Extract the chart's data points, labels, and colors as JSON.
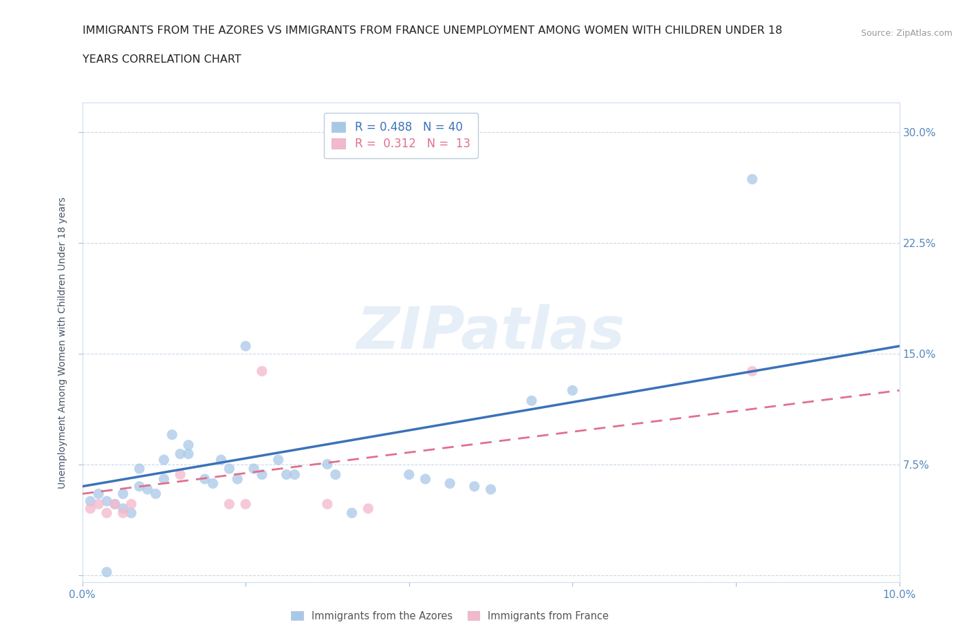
{
  "title_line1": "IMMIGRANTS FROM THE AZORES VS IMMIGRANTS FROM FRANCE UNEMPLOYMENT AMONG WOMEN WITH CHILDREN UNDER 18",
  "title_line2": "YEARS CORRELATION CHART",
  "source": "Source: ZipAtlas.com",
  "ylabel": "Unemployment Among Women with Children Under 18 years",
  "xlim": [
    0.0,
    0.1
  ],
  "ylim": [
    -0.005,
    0.32
  ],
  "xticks": [
    0.0,
    0.02,
    0.04,
    0.06,
    0.08,
    0.1
  ],
  "yticks": [
    0.0,
    0.075,
    0.15,
    0.225,
    0.3
  ],
  "xticklabels": [
    "0.0%",
    "",
    "",
    "",
    "",
    "10.0%"
  ],
  "yticklabels_right": [
    "",
    "7.5%",
    "15.0%",
    "22.5%",
    "30.0%"
  ],
  "blue_R": 0.488,
  "blue_N": 40,
  "pink_R": 0.312,
  "pink_N": 13,
  "blue_color": "#a8c8e8",
  "pink_color": "#f4b8cc",
  "blue_line_color": "#3a72b8",
  "pink_line_color": "#e0708c",
  "background_color": "#ffffff",
  "grid_color": "#c8d8e8",
  "watermark": "ZIPatlas",
  "blue_scatter_x": [
    0.001,
    0.002,
    0.003,
    0.004,
    0.005,
    0.005,
    0.006,
    0.007,
    0.007,
    0.008,
    0.009,
    0.01,
    0.01,
    0.011,
    0.012,
    0.013,
    0.013,
    0.015,
    0.016,
    0.017,
    0.018,
    0.019,
    0.02,
    0.021,
    0.022,
    0.024,
    0.025,
    0.026,
    0.03,
    0.031,
    0.033,
    0.04,
    0.042,
    0.045,
    0.048,
    0.05,
    0.055,
    0.06,
    0.082,
    0.003
  ],
  "blue_scatter_y": [
    0.05,
    0.055,
    0.05,
    0.048,
    0.045,
    0.055,
    0.042,
    0.06,
    0.072,
    0.058,
    0.055,
    0.065,
    0.078,
    0.095,
    0.082,
    0.082,
    0.088,
    0.065,
    0.062,
    0.078,
    0.072,
    0.065,
    0.155,
    0.072,
    0.068,
    0.078,
    0.068,
    0.068,
    0.075,
    0.068,
    0.042,
    0.068,
    0.065,
    0.062,
    0.06,
    0.058,
    0.118,
    0.125,
    0.268,
    0.002
  ],
  "pink_scatter_x": [
    0.001,
    0.002,
    0.003,
    0.004,
    0.005,
    0.006,
    0.012,
    0.018,
    0.02,
    0.022,
    0.03,
    0.035,
    0.082
  ],
  "pink_scatter_y": [
    0.045,
    0.048,
    0.042,
    0.048,
    0.042,
    0.048,
    0.068,
    0.048,
    0.048,
    0.138,
    0.048,
    0.045,
    0.138
  ],
  "blue_trend_x": [
    0.0,
    0.1
  ],
  "blue_trend_y": [
    0.06,
    0.155
  ],
  "pink_trend_x": [
    0.0,
    0.1
  ],
  "pink_trend_y": [
    0.055,
    0.125
  ],
  "title_fontsize": 11.5,
  "axis_fontsize": 10,
  "tick_fontsize": 11,
  "legend_fontsize": 12,
  "scatter_size": 120
}
